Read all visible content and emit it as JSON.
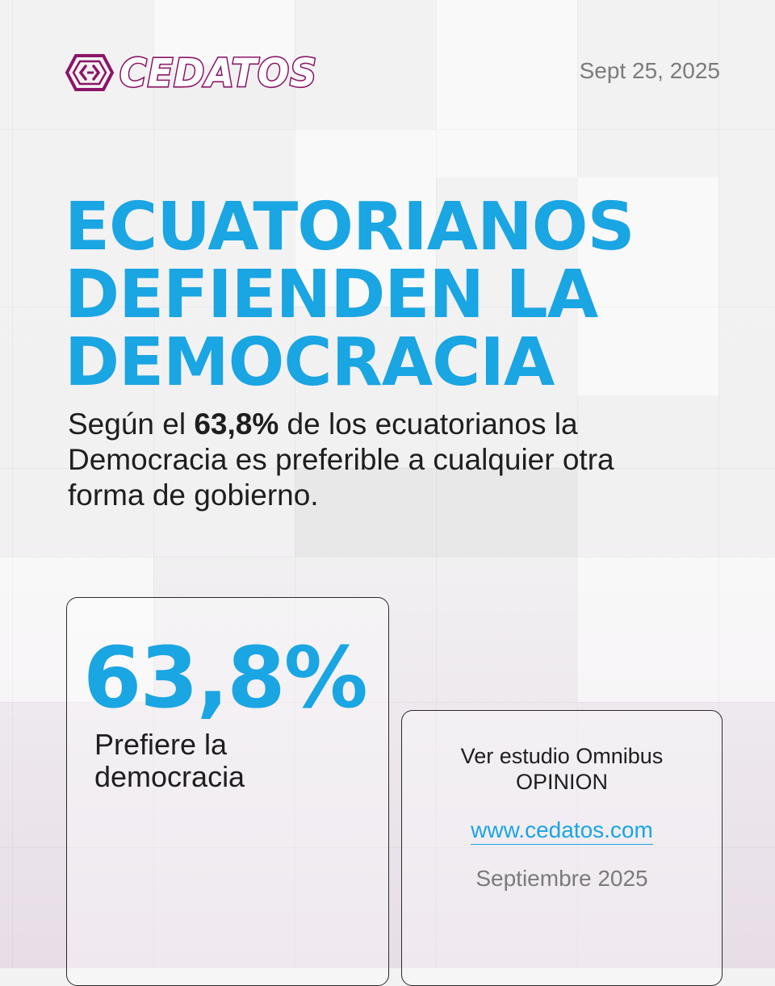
{
  "brand": {
    "name": "CEDATOS",
    "color": "#8b1566",
    "icon": "cedatos-hexagon-logo-icon"
  },
  "date": "Sept 25, 2025",
  "headline": {
    "lines": [
      "ECUATORIANOS",
      "DEFIENDEN LA",
      "DEMOCRACIA"
    ],
    "color": "#1aa5e3"
  },
  "lead": {
    "before": "Según el ",
    "highlight": "63,8%",
    "after": " de los ecuatorianos  la Democracia es preferible a cualquier otra forma de gobierno."
  },
  "stat_card": {
    "value": "63,8%",
    "label": "Prefiere la democracia"
  },
  "study_card": {
    "text": "Ver estudio Omnibus OPINION",
    "url": "www.cedatos.com",
    "month": "Septiembre 2025"
  }
}
